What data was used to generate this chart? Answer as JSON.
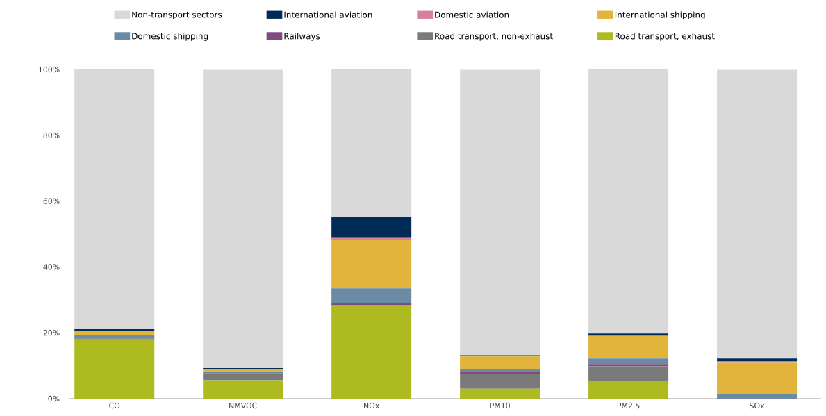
{
  "chart_data": {
    "type": "bar",
    "stacked": true,
    "categories": [
      "CO",
      "NMVOC",
      "NOx",
      "PM10",
      "PM2.5",
      "SOx"
    ],
    "ylim": [
      0,
      100
    ],
    "yticks": [
      {
        "value": 0,
        "label": "0%"
      },
      {
        "value": 20,
        "label": "20%"
      },
      {
        "value": 40,
        "label": "40%"
      },
      {
        "value": 60,
        "label": "60%"
      },
      {
        "value": 80,
        "label": "80%"
      },
      {
        "value": 100,
        "label": "100%"
      }
    ],
    "grid": false,
    "legend": "top",
    "series": [
      {
        "name": "Road transport, exhaust",
        "color": "#adbb21",
        "values": [
          18.0,
          5.6,
          28.3,
          3.0,
          5.4,
          null
        ]
      },
      {
        "name": "Road transport, non-exhaust",
        "color": "#7a7a7a",
        "values": [
          0.3,
          1.8,
          0.1,
          4.5,
          4.4,
          0.0
        ]
      },
      {
        "name": "Railways",
        "color": "#7f4a80",
        "values": [
          0.2,
          0.3,
          0.6,
          0.7,
          0.7,
          0.0
        ]
      },
      {
        "name": "Domestic shipping",
        "color": "#6b8aa3",
        "values": [
          0.8,
          0.5,
          4.5,
          0.7,
          1.7,
          1.3
        ]
      },
      {
        "name": "International shipping",
        "color": "#e2b43b",
        "values": [
          1.0,
          0.8,
          14.8,
          3.9,
          6.8,
          9.8
        ]
      },
      {
        "name": "Domestic aviation",
        "color": "#d87f9e",
        "values": [
          0.3,
          null,
          0.7,
          null,
          0.1,
          0.2
        ]
      },
      {
        "name": "International aviation",
        "color": "#002b54",
        "values": [
          0.5,
          0.3,
          6.3,
          0.4,
          0.7,
          0.9
        ]
      },
      {
        "name": "Non-transport sectors",
        "color": "#d9d9d9",
        "values": [
          78.9,
          90.6,
          44.7,
          86.7,
          80.2,
          87.7
        ]
      }
    ]
  }
}
